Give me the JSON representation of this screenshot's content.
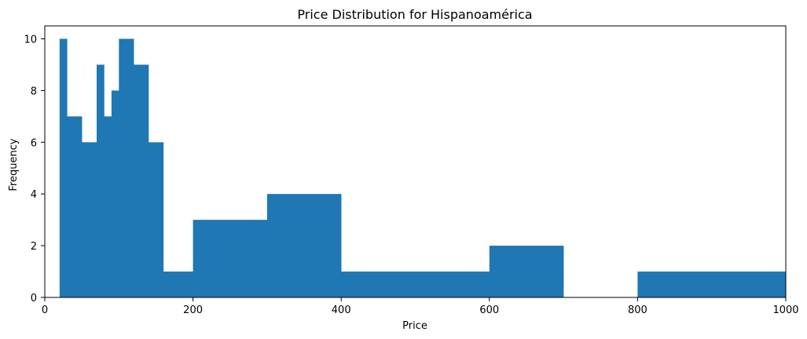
{
  "colors": {
    "bar": "#1f77b4",
    "axis": "#000000",
    "background": "#ffffff"
  },
  "chart_data": {
    "type": "bar",
    "title": "Price Distribution for Hispanoamérica",
    "xlabel": "Price",
    "ylabel": "Frequency",
    "xlim": [
      0,
      1000
    ],
    "ylim": [
      0,
      10.5
    ],
    "xticks": [
      0,
      200,
      400,
      600,
      800,
      1000
    ],
    "yticks": [
      0,
      2,
      4,
      6,
      8,
      10
    ],
    "grid": false,
    "bins": [
      {
        "x0": 20,
        "x1": 30,
        "count": 10
      },
      {
        "x0": 30,
        "x1": 50,
        "count": 7
      },
      {
        "x0": 50,
        "x1": 70,
        "count": 6
      },
      {
        "x0": 70,
        "x1": 80,
        "count": 9
      },
      {
        "x0": 80,
        "x1": 90,
        "count": 7
      },
      {
        "x0": 90,
        "x1": 100,
        "count": 8
      },
      {
        "x0": 100,
        "x1": 120,
        "count": 10
      },
      {
        "x0": 120,
        "x1": 140,
        "count": 9
      },
      {
        "x0": 140,
        "x1": 160,
        "count": 6
      },
      {
        "x0": 160,
        "x1": 200,
        "count": 1
      },
      {
        "x0": 200,
        "x1": 300,
        "count": 3
      },
      {
        "x0": 300,
        "x1": 400,
        "count": 4
      },
      {
        "x0": 400,
        "x1": 600,
        "count": 1
      },
      {
        "x0": 600,
        "x1": 700,
        "count": 2
      },
      {
        "x0": 700,
        "x1": 800,
        "count": 0
      },
      {
        "x0": 800,
        "x1": 1000,
        "count": 1
      }
    ]
  }
}
